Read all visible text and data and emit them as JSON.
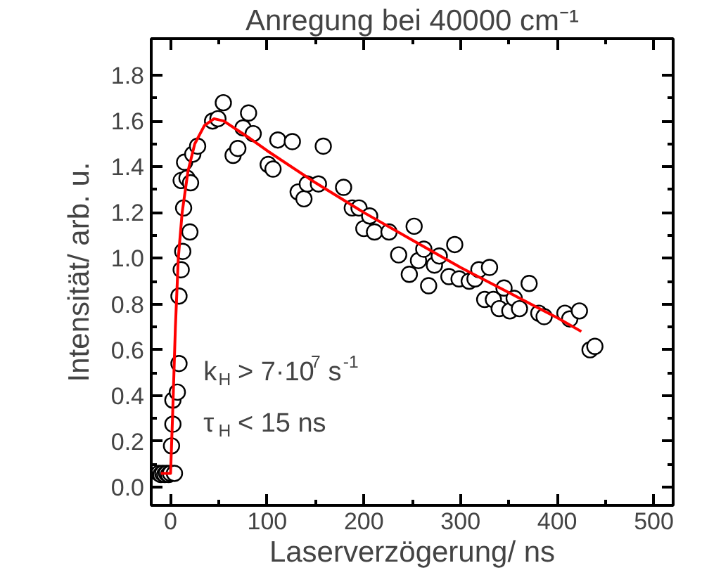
{
  "chart_data": {
    "type": "scatter",
    "title": "Anregung bei 40000 cm⁻¹",
    "xlabel": "Laserverzögerung/ ns",
    "ylabel": "Intensität/ arb. u.",
    "xlim": [
      -20,
      520
    ],
    "xticks": [
      0,
      100,
      200,
      300,
      400,
      500
    ],
    "ylim": [
      -0.08,
      1.96
    ],
    "yticks": [
      {
        "value": 0,
        "label": "0.0"
      },
      {
        "value": 0.2,
        "label": "0.2"
      },
      {
        "value": 0.4,
        "label": "0.4"
      },
      {
        "value": 0.6,
        "label": "0.6"
      },
      {
        "value": 0.8,
        "label": "0.8"
      },
      {
        "value": 1,
        "label": "1.0"
      },
      {
        "value": 1.2,
        "label": "1.2"
      },
      {
        "value": 1.4,
        "label": "1.4"
      },
      {
        "value": 1.6,
        "label": "1.6"
      },
      {
        "value": 1.8,
        "label": "1.8"
      }
    ],
    "grid": false,
    "annotations": [
      "k$_{H}$ > 7·10$^{7}$ s$^{-1}$",
      "τ$_{H}$ < 15 ns"
    ],
    "series": [
      {
        "marker": "circle",
        "color": "#000000",
        "x": [
          -12,
          -10,
          -8,
          -6,
          -4,
          -2,
          0,
          4,
          1,
          2.4,
          2.4,
          7,
          8.7,
          8.7,
          11,
          12.6,
          20,
          13.5,
          11,
          17,
          20.7,
          14.5,
          23,
          28,
          43.5,
          49,
          54.6,
          64.7,
          69.6,
          75,
          80.7,
          85.5,
          101,
          106,
          111,
          126,
          132,
          138,
          141.5,
          153,
          158,
          179,
          188,
          195,
          200,
          206,
          211,
          226,
          236,
          247,
          252,
          256.5,
          262,
          267,
          273,
          278,
          288,
          294,
          298.5,
          309,
          315,
          319,
          325,
          330,
          334,
          340,
          345,
          351,
          355.5,
          361,
          371,
          381,
          386.5,
          408,
          413,
          423,
          434,
          439
        ],
        "values": [
          0.06,
          0.055,
          0.06,
          0.055,
          0.06,
          0.055,
          0.06,
          0.06,
          0.18,
          0.275,
          0.38,
          0.415,
          0.54,
          0.835,
          0.95,
          1.03,
          1.115,
          1.22,
          1.34,
          1.35,
          1.33,
          1.42,
          1.455,
          1.49,
          1.6,
          1.61,
          1.68,
          1.45,
          1.48,
          1.57,
          1.635,
          1.545,
          1.41,
          1.39,
          1.517,
          1.51,
          1.29,
          1.26,
          1.325,
          1.325,
          1.49,
          1.31,
          1.22,
          1.22,
          1.13,
          1.185,
          1.115,
          1.115,
          1.015,
          0.93,
          1.14,
          0.99,
          1.04,
          0.88,
          0.97,
          1.01,
          0.92,
          1.06,
          0.91,
          0.9,
          0.91,
          0.95,
          0.82,
          0.96,
          0.82,
          0.78,
          0.87,
          0.77,
          0.825,
          0.78,
          0.89,
          0.76,
          0.745,
          0.76,
          0.735,
          0.77,
          0.6,
          0.615
        ]
      },
      {
        "type": "line",
        "line_style": "solid",
        "color": "#ff0000",
        "x": [
          -10,
          0,
          2,
          5,
          8,
          12,
          18,
          25,
          35,
          45,
          55,
          80,
          100,
          150,
          200,
          250,
          300,
          350,
          400,
          425
        ],
        "values": [
          0.06,
          0.06,
          0.3,
          0.7,
          1.0,
          1.2,
          1.38,
          1.5,
          1.58,
          1.61,
          1.6,
          1.53,
          1.47,
          1.33,
          1.2,
          1.08,
          0.96,
          0.85,
          0.74,
          0.68
        ]
      }
    ]
  }
}
